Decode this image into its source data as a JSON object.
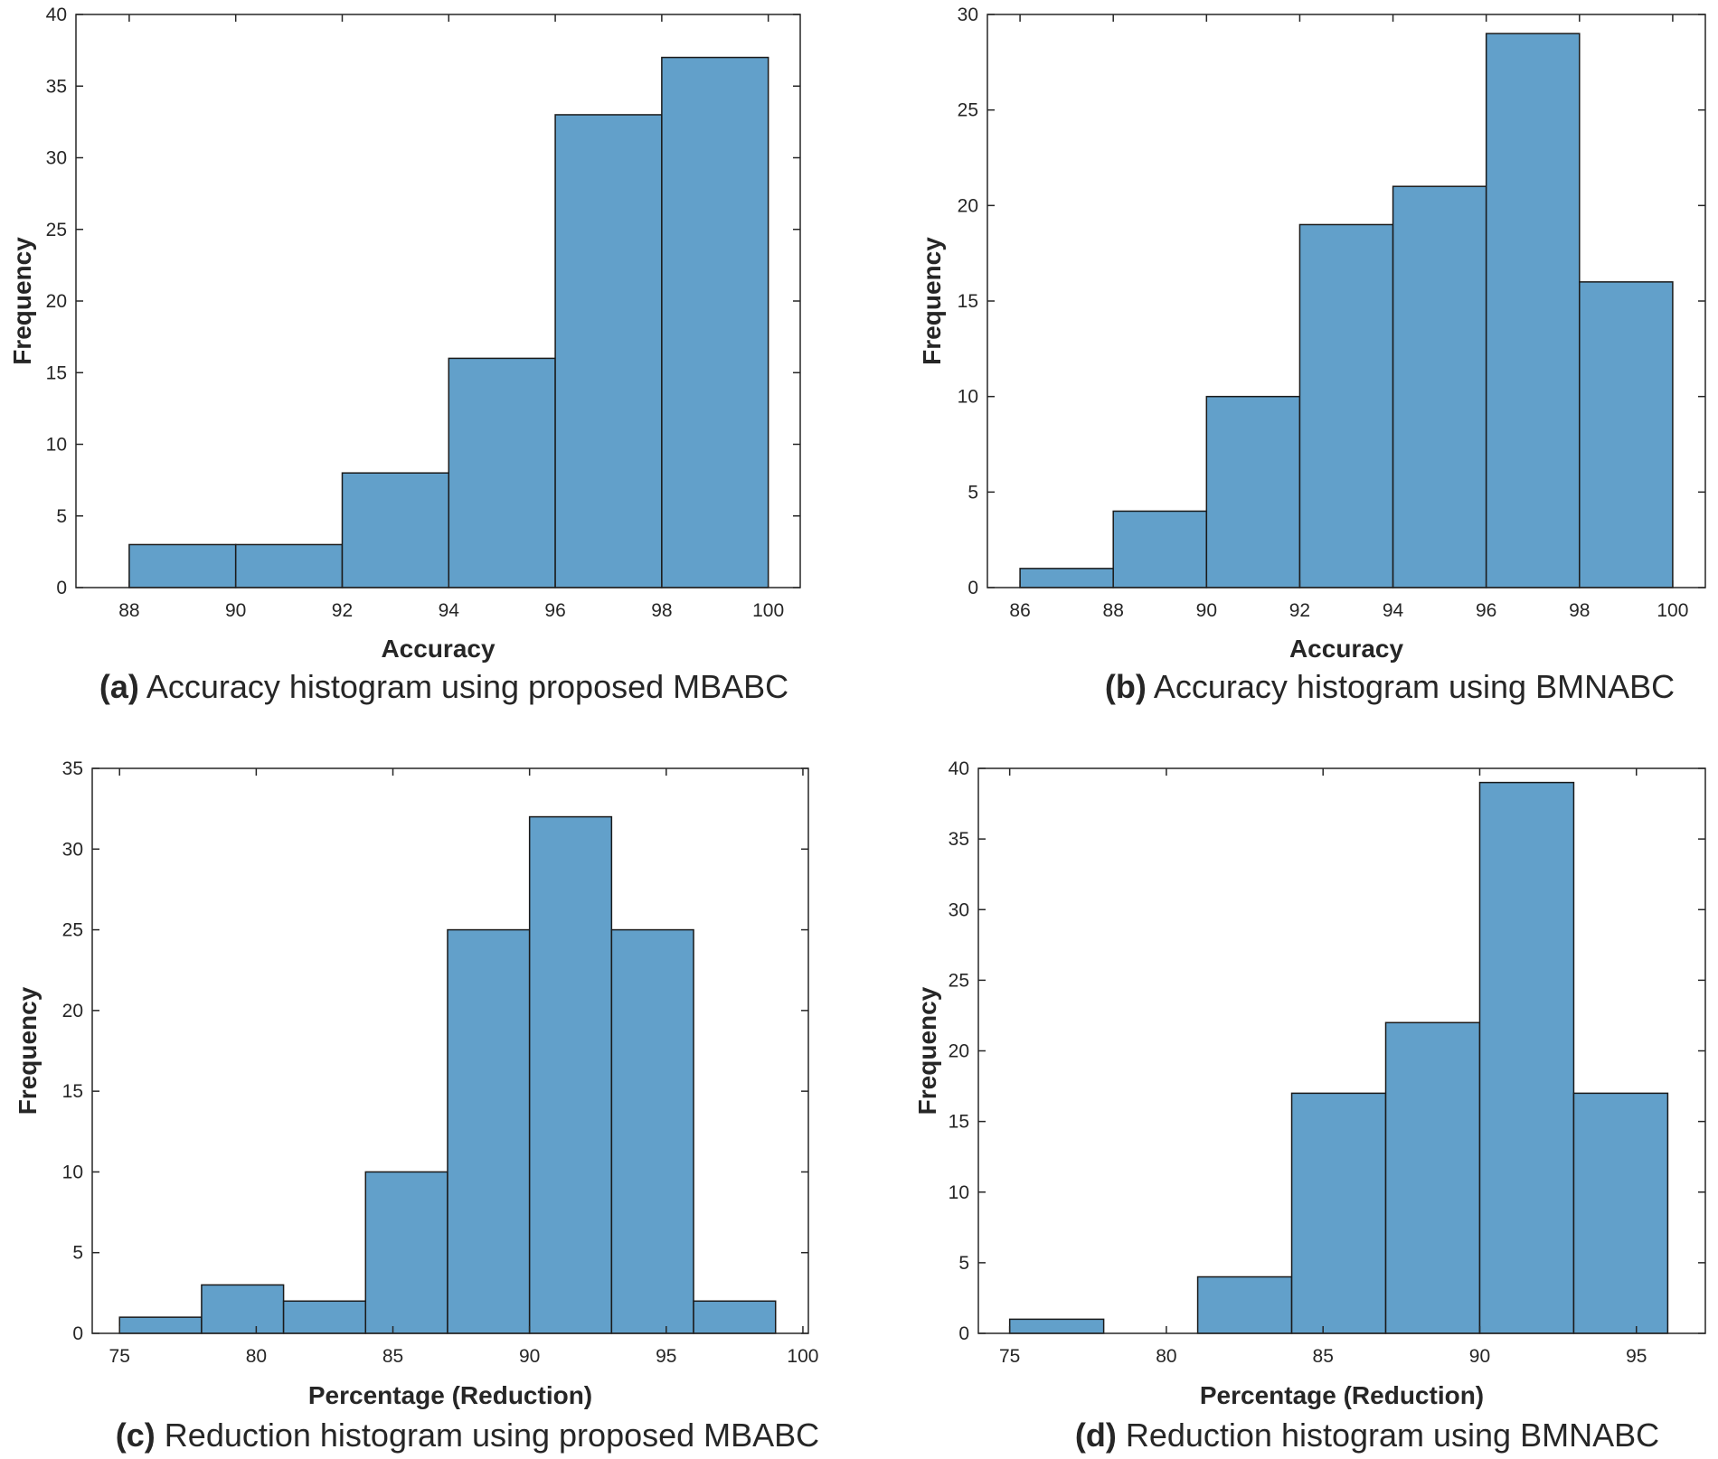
{
  "chart_data": [
    {
      "type": "bar",
      "panel": "a",
      "caption_prefix": "(a)",
      "caption_text": "Accuracy histogram using proposed MBABC",
      "xlabel": "Accuracy",
      "ylabel": "Frequency",
      "bin_edges": [
        88,
        90,
        92,
        94,
        96,
        98,
        100
      ],
      "values": [
        3,
        3,
        8,
        16,
        33,
        37
      ],
      "xlim": [
        87,
        100.6
      ],
      "ylim": [
        0,
        40
      ],
      "xticks": [
        88,
        90,
        92,
        94,
        96,
        98,
        100
      ],
      "yticks": [
        0,
        5,
        10,
        15,
        20,
        25,
        30,
        35,
        40
      ]
    },
    {
      "type": "bar",
      "panel": "b",
      "caption_prefix": "(b)",
      "caption_text": "Accuracy histogram using BMNABC",
      "xlabel": "Accuracy",
      "ylabel": "Frequency",
      "bin_edges": [
        86,
        88,
        90,
        92,
        94,
        96,
        98,
        100
      ],
      "values": [
        1,
        4,
        10,
        19,
        21,
        29,
        16
      ],
      "xlim": [
        85.3,
        100.7
      ],
      "ylim": [
        0,
        30
      ],
      "xticks": [
        86,
        88,
        90,
        92,
        94,
        96,
        98,
        100
      ],
      "yticks": [
        0,
        5,
        10,
        15,
        20,
        25,
        30
      ]
    },
    {
      "type": "bar",
      "panel": "c",
      "caption_prefix": "(c)",
      "caption_text": "Reduction histogram using proposed MBABC",
      "xlabel": "Percentage (Reduction)",
      "ylabel": "Frequency",
      "bin_edges": [
        75,
        78,
        81,
        84,
        87,
        90,
        93,
        96,
        99
      ],
      "values": [
        1,
        3,
        2,
        10,
        25,
        32,
        25,
        2
      ],
      "xlim": [
        74,
        100.2
      ],
      "ylim": [
        0,
        35
      ],
      "xticks": [
        75,
        80,
        85,
        90,
        95,
        100
      ],
      "yticks": [
        0,
        5,
        10,
        15,
        20,
        25,
        30,
        35
      ]
    },
    {
      "type": "bar",
      "panel": "d",
      "caption_prefix": "(d)",
      "caption_text": "Reduction histogram using BMNABC",
      "xlabel": "Percentage (Reduction)",
      "ylabel": "Frequency",
      "bin_edges": [
        75,
        78,
        81,
        84,
        87,
        90,
        93,
        96
      ],
      "values": [
        1,
        0,
        4,
        17,
        22,
        39,
        17
      ],
      "xlim": [
        74,
        97.2
      ],
      "ylim": [
        0,
        40
      ],
      "xticks": [
        75,
        80,
        85,
        90,
        95
      ],
      "yticks": [
        0,
        5,
        10,
        15,
        20,
        25,
        30,
        35,
        40
      ]
    }
  ]
}
